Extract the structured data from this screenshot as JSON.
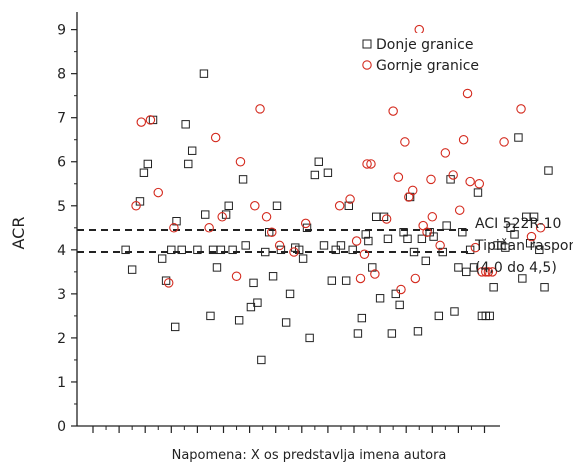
{
  "chart_data": {
    "type": "scatter",
    "title": "",
    "xlabel": "Napomena: X os predstavlja imena autora",
    "ylabel": "ACR",
    "ylim": [
      0,
      9.4
    ],
    "y_ticks": [
      "0",
      "1",
      "2",
      "3",
      "4",
      "5",
      "6",
      "7",
      "8",
      "9"
    ],
    "x_tick_count": 16,
    "grid": false,
    "legend_position": "top-right",
    "colors": {
      "lower": "#222222",
      "upper": "#d42a1e",
      "ref": "#222222"
    },
    "reference_lines": [
      {
        "y": 4.45,
        "style": "dashed"
      },
      {
        "y": 3.95,
        "style": "dashed"
      }
    ],
    "annotations": {
      "line1": "ACI 522R-10",
      "line2": "Tipičan raspon",
      "line3": "(4,0 do 4,5)"
    },
    "series": [
      {
        "name": "Donje granice",
        "marker": "square",
        "points": [
          [
            2.5,
            4.0
          ],
          [
            3.0,
            3.55
          ],
          [
            3.6,
            5.1
          ],
          [
            3.9,
            5.75
          ],
          [
            4.2,
            5.95
          ],
          [
            4.6,
            6.95
          ],
          [
            5.3,
            3.8
          ],
          [
            5.6,
            3.3
          ],
          [
            6.0,
            4.0
          ],
          [
            6.3,
            2.25
          ],
          [
            6.4,
            4.65
          ],
          [
            6.8,
            4.0
          ],
          [
            7.1,
            6.85
          ],
          [
            7.3,
            5.95
          ],
          [
            7.6,
            6.25
          ],
          [
            8.0,
            4.0
          ],
          [
            8.5,
            8.0
          ],
          [
            8.6,
            4.8
          ],
          [
            9.0,
            2.5
          ],
          [
            9.2,
            4.0
          ],
          [
            9.5,
            3.6
          ],
          [
            9.8,
            4.0
          ],
          [
            10.2,
            4.8
          ],
          [
            10.4,
            5.0
          ],
          [
            10.7,
            4.0
          ],
          [
            11.2,
            2.4
          ],
          [
            11.5,
            5.6
          ],
          [
            11.7,
            4.1
          ],
          [
            12.1,
            2.7
          ],
          [
            12.3,
            3.25
          ],
          [
            12.6,
            2.8
          ],
          [
            12.9,
            1.5
          ],
          [
            13.2,
            3.95
          ],
          [
            13.5,
            4.4
          ],
          [
            13.8,
            3.4
          ],
          [
            14.1,
            5.0
          ],
          [
            14.4,
            4.0
          ],
          [
            14.8,
            2.35
          ],
          [
            15.1,
            3.0
          ],
          [
            15.5,
            4.05
          ],
          [
            15.8,
            4.0
          ],
          [
            16.1,
            3.8
          ],
          [
            16.4,
            4.5
          ],
          [
            16.6,
            2.0
          ],
          [
            17.0,
            5.7
          ],
          [
            17.3,
            6.0
          ],
          [
            17.7,
            4.1
          ],
          [
            18.0,
            5.75
          ],
          [
            18.3,
            3.3
          ],
          [
            18.6,
            4.0
          ],
          [
            19.0,
            4.1
          ],
          [
            19.4,
            3.3
          ],
          [
            19.6,
            5.0
          ],
          [
            19.9,
            4.0
          ],
          [
            20.3,
            2.1
          ],
          [
            20.6,
            2.45
          ],
          [
            20.9,
            4.35
          ],
          [
            21.1,
            4.2
          ],
          [
            21.4,
            3.6
          ],
          [
            21.7,
            4.75
          ],
          [
            22.0,
            2.9
          ],
          [
            22.3,
            4.75
          ],
          [
            22.6,
            4.25
          ],
          [
            22.9,
            2.1
          ],
          [
            23.2,
            3.0
          ],
          [
            23.5,
            2.75
          ],
          [
            23.8,
            4.4
          ],
          [
            24.1,
            4.25
          ],
          [
            24.3,
            5.2
          ],
          [
            24.6,
            3.95
          ],
          [
            24.9,
            2.15
          ],
          [
            25.2,
            4.25
          ],
          [
            25.5,
            3.75
          ],
          [
            25.8,
            4.4
          ],
          [
            26.1,
            4.3
          ],
          [
            26.5,
            2.5
          ],
          [
            26.8,
            3.95
          ],
          [
            27.1,
            4.55
          ],
          [
            27.4,
            5.6
          ],
          [
            27.7,
            2.6
          ],
          [
            28.0,
            3.6
          ],
          [
            28.3,
            4.4
          ],
          [
            28.6,
            3.5
          ],
          [
            28.9,
            4.0
          ],
          [
            29.2,
            3.6
          ],
          [
            29.5,
            5.3
          ],
          [
            29.8,
            2.5
          ],
          [
            30.1,
            2.5
          ],
          [
            30.4,
            2.5
          ],
          [
            30.7,
            3.15
          ],
          [
            31.0,
            4.1
          ],
          [
            31.3,
            4.1
          ],
          [
            31.6,
            4.05
          ],
          [
            32.0,
            4.5
          ],
          [
            32.3,
            4.35
          ],
          [
            32.6,
            6.55
          ],
          [
            32.9,
            3.35
          ],
          [
            33.2,
            4.75
          ],
          [
            33.5,
            4.15
          ],
          [
            33.8,
            4.75
          ],
          [
            34.2,
            4.0
          ],
          [
            34.6,
            3.15
          ],
          [
            34.9,
            5.8
          ]
        ]
      },
      {
        "name": "Gornje granice",
        "marker": "circle",
        "points": [
          [
            3.3,
            5.0
          ],
          [
            3.7,
            6.9
          ],
          [
            4.4,
            6.95
          ],
          [
            5.0,
            5.3
          ],
          [
            5.8,
            3.25
          ],
          [
            6.2,
            4.5
          ],
          [
            8.9,
            4.5
          ],
          [
            9.4,
            6.55
          ],
          [
            9.9,
            4.75
          ],
          [
            11.0,
            3.4
          ],
          [
            11.3,
            6.0
          ],
          [
            12.4,
            5.0
          ],
          [
            12.8,
            7.2
          ],
          [
            13.3,
            4.75
          ],
          [
            13.7,
            4.4
          ],
          [
            14.3,
            4.1
          ],
          [
            15.4,
            3.95
          ],
          [
            16.3,
            4.6
          ],
          [
            18.9,
            5.0
          ],
          [
            19.7,
            5.15
          ],
          [
            20.2,
            4.2
          ],
          [
            20.5,
            3.35
          ],
          [
            20.8,
            3.9
          ],
          [
            21.0,
            5.95
          ],
          [
            21.3,
            5.95
          ],
          [
            21.6,
            3.45
          ],
          [
            22.5,
            4.7
          ],
          [
            23.0,
            7.15
          ],
          [
            23.4,
            5.65
          ],
          [
            23.6,
            3.1
          ],
          [
            23.9,
            6.45
          ],
          [
            24.2,
            5.2
          ],
          [
            24.5,
            5.35
          ],
          [
            24.7,
            3.35
          ],
          [
            25.0,
            9.0
          ],
          [
            25.3,
            4.55
          ],
          [
            25.6,
            4.4
          ],
          [
            25.9,
            5.6
          ],
          [
            26.0,
            4.75
          ],
          [
            26.6,
            4.1
          ],
          [
            27.0,
            6.2
          ],
          [
            27.6,
            5.7
          ],
          [
            28.1,
            4.9
          ],
          [
            28.4,
            6.5
          ],
          [
            28.7,
            7.55
          ],
          [
            28.9,
            5.55
          ],
          [
            29.3,
            4.05
          ],
          [
            29.6,
            5.5
          ],
          [
            29.8,
            3.5
          ],
          [
            30.1,
            3.5
          ],
          [
            30.3,
            3.5
          ],
          [
            30.6,
            3.5
          ],
          [
            31.5,
            6.45
          ],
          [
            32.8,
            7.2
          ],
          [
            33.6,
            4.3
          ],
          [
            34.3,
            4.5
          ]
        ]
      }
    ]
  }
}
